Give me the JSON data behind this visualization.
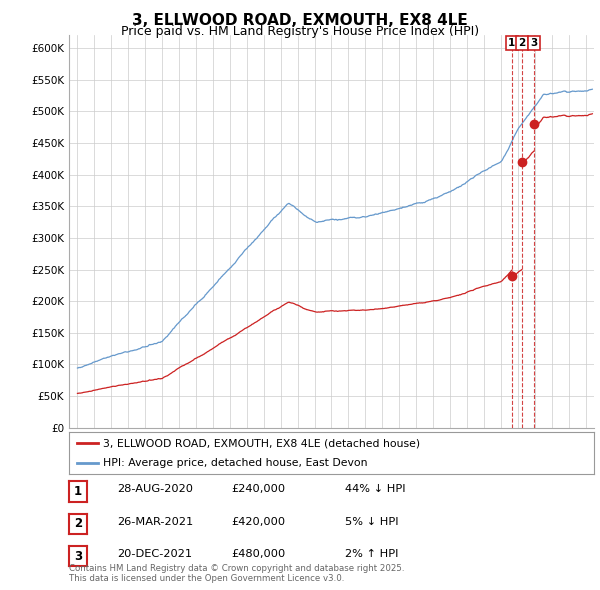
{
  "title": "3, ELLWOOD ROAD, EXMOUTH, EX8 4LE",
  "subtitle": "Price paid vs. HM Land Registry's House Price Index (HPI)",
  "title_fontsize": 11,
  "subtitle_fontsize": 9,
  "background_color": "#ffffff",
  "plot_bg_color": "#ffffff",
  "grid_color": "#cccccc",
  "hpi_color": "#6699cc",
  "price_color": "#cc2222",
  "ylim": [
    0,
    620000
  ],
  "yticks": [
    0,
    50000,
    100000,
    150000,
    200000,
    250000,
    300000,
    350000,
    400000,
    450000,
    500000,
    550000,
    600000
  ],
  "xlim_start": 1994.5,
  "xlim_end": 2025.5,
  "transactions": [
    {
      "label": "1",
      "date": "28-AUG-2020",
      "price": 240000,
      "pct": "44%",
      "direction": "↓",
      "x": 2020.653
    },
    {
      "label": "2",
      "date": "26-MAR-2021",
      "price": 420000,
      "pct": "5%",
      "direction": "↓",
      "x": 2021.233
    },
    {
      "label": "3",
      "date": "20-DEC-2021",
      "price": 480000,
      "pct": "2%",
      "direction": "↑",
      "x": 2021.959
    }
  ],
  "legend_line1": "3, ELLWOOD ROAD, EXMOUTH, EX8 4LE (detached house)",
  "legend_line2": "HPI: Average price, detached house, East Devon",
  "footnote": "Contains HM Land Registry data © Crown copyright and database right 2025.\nThis data is licensed under the Open Government Licence v3.0."
}
